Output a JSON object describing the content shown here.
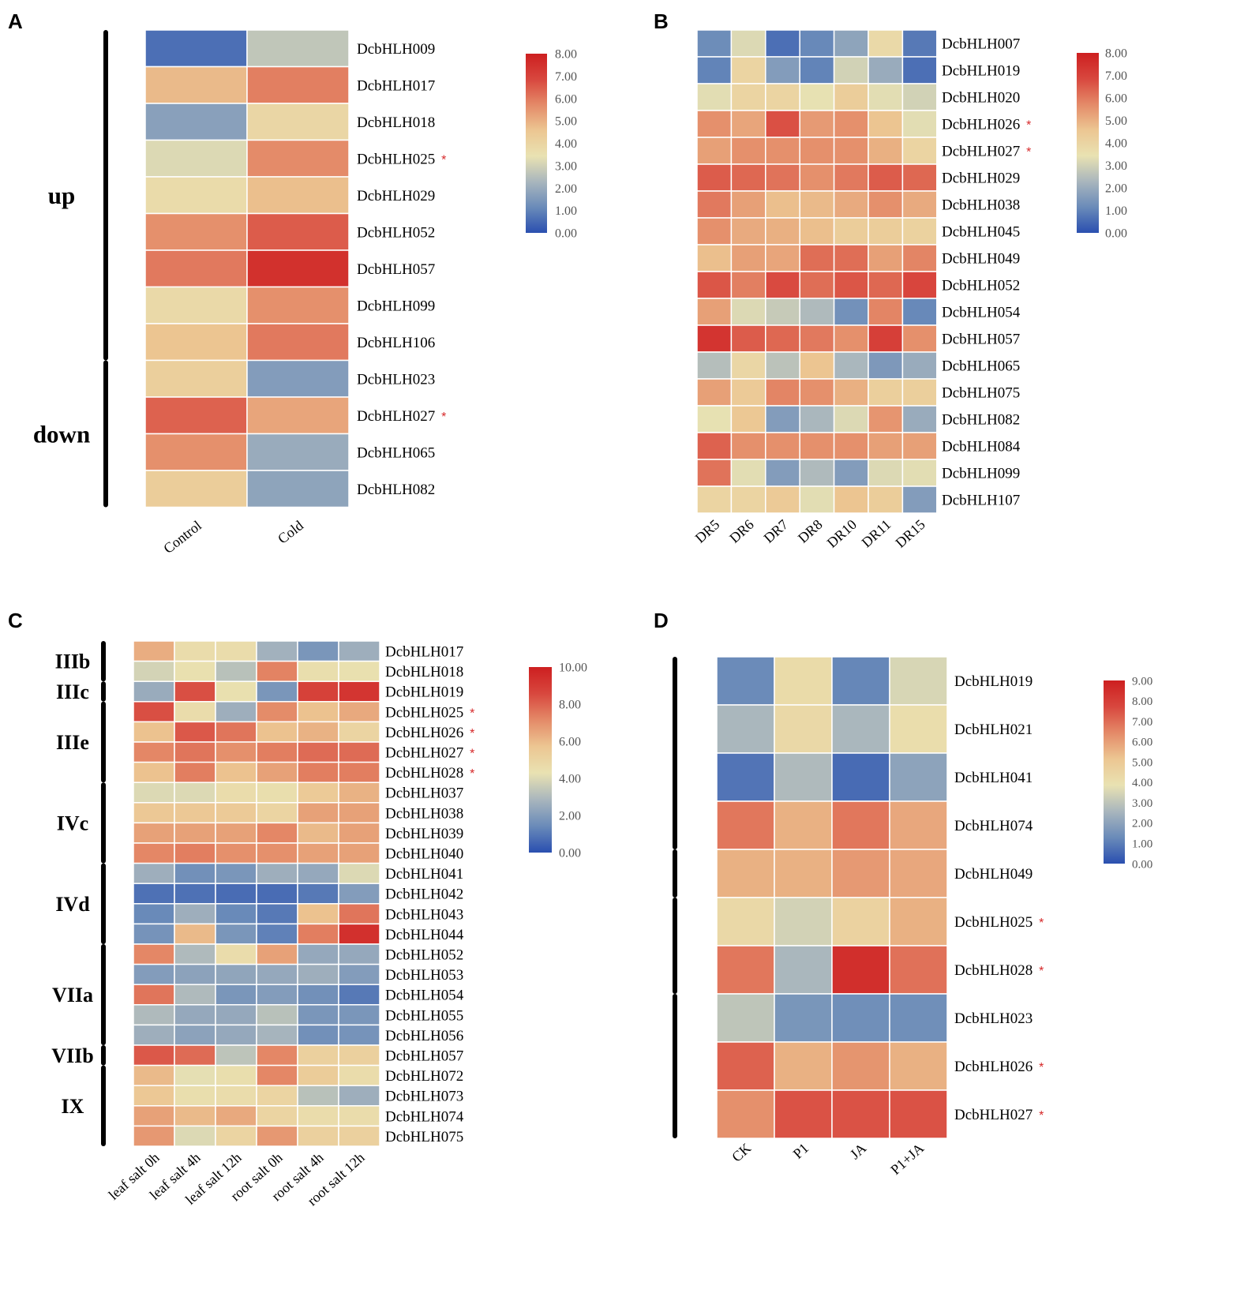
{
  "colors": {
    "scale": [
      "#2a4fb0",
      "#6a8bb9",
      "#a9b6bd",
      "#e9e2b2",
      "#ecc692",
      "#e48a68",
      "#d8473e",
      "#cd1f20"
    ],
    "asterisk": "#d62728",
    "cell_border": "#ffffff"
  },
  "chart_data": [
    {
      "panel": "A",
      "type": "heatmap",
      "columns": [
        "Control",
        "Cold"
      ],
      "rows": [
        {
          "gene": "DcbHLH009",
          "values": [
            0.6,
            2.7
          ],
          "mark": ""
        },
        {
          "gene": "DcbHLH017",
          "values": [
            4.8,
            5.9
          ],
          "mark": ""
        },
        {
          "gene": "DcbHLH018",
          "values": [
            1.7,
            3.9
          ],
          "mark": ""
        },
        {
          "gene": "DcbHLH025",
          "values": [
            3.2,
            5.7
          ],
          "mark": "*"
        },
        {
          "gene": "DcbHLH029",
          "values": [
            3.7,
            4.7
          ],
          "mark": ""
        },
        {
          "gene": "DcbHLH052",
          "values": [
            5.6,
            6.5
          ],
          "mark": ""
        },
        {
          "gene": "DcbHLH057",
          "values": [
            6.0,
            7.5
          ],
          "mark": ""
        },
        {
          "gene": "DcbHLH099",
          "values": [
            3.8,
            5.6
          ],
          "mark": ""
        },
        {
          "gene": "DcbHLH106",
          "values": [
            4.6,
            6.0
          ],
          "mark": ""
        },
        {
          "gene": "DcbHLH023",
          "values": [
            4.2,
            1.6
          ],
          "mark": ""
        },
        {
          "gene": "DcbHLH027",
          "values": [
            6.4,
            5.2
          ],
          "mark": "*"
        },
        {
          "gene": "DcbHLH065",
          "values": [
            5.6,
            2.0
          ],
          "mark": ""
        },
        {
          "gene": "DcbHLH082",
          "values": [
            4.3,
            1.8
          ],
          "mark": ""
        }
      ],
      "groups": [
        {
          "label": "up",
          "start": 0,
          "end": 8
        },
        {
          "label": "down",
          "start": 9,
          "end": 12
        }
      ],
      "scale": {
        "min": 0,
        "max": 8,
        "ticks": [
          "8.00",
          "7.00",
          "6.00",
          "5.00",
          "4.00",
          "3.00",
          "2.00",
          "1.00",
          "0.00"
        ]
      }
    },
    {
      "panel": "B",
      "type": "heatmap",
      "columns": [
        "DR5",
        "DR6",
        "DR7",
        "DR8",
        "DR10",
        "DR11",
        "DR15"
      ],
      "rows": [
        {
          "gene": "DcbHLH007",
          "values": [
            1.2,
            3.2,
            0.6,
            1.1,
            1.8,
            3.8,
            0.8
          ],
          "mark": ""
        },
        {
          "gene": "DcbHLH019",
          "values": [
            1.0,
            4.0,
            1.6,
            1.0,
            3.0,
            2.0,
            0.6
          ],
          "mark": ""
        },
        {
          "gene": "DcbHLH020",
          "values": [
            3.3,
            4.0,
            4.0,
            3.4,
            4.3,
            3.3,
            3.0
          ],
          "mark": ""
        },
        {
          "gene": "DcbHLH026",
          "values": [
            5.6,
            5.2,
            6.7,
            5.4,
            5.6,
            4.6,
            3.3
          ],
          "mark": "*"
        },
        {
          "gene": "DcbHLH027",
          "values": [
            5.3,
            5.6,
            5.6,
            5.6,
            5.6,
            5.0,
            4.0
          ],
          "mark": "*"
        },
        {
          "gene": "DcbHLH029",
          "values": [
            6.5,
            6.3,
            6.1,
            5.6,
            6.0,
            6.5,
            6.3
          ],
          "mark": ""
        },
        {
          "gene": "DcbHLH038",
          "values": [
            6.0,
            5.3,
            4.7,
            4.8,
            5.1,
            5.6,
            5.1
          ],
          "mark": ""
        },
        {
          "gene": "DcbHLH045",
          "values": [
            5.6,
            5.1,
            5.0,
            4.7,
            4.3,
            4.3,
            4.1
          ],
          "mark": ""
        },
        {
          "gene": "DcbHLH049",
          "values": [
            4.7,
            5.3,
            5.2,
            6.2,
            6.2,
            5.3,
            5.8
          ],
          "mark": ""
        },
        {
          "gene": "DcbHLH052",
          "values": [
            6.6,
            5.9,
            6.8,
            6.2,
            6.6,
            6.3,
            6.9
          ],
          "mark": ""
        },
        {
          "gene": "DcbHLH054",
          "values": [
            5.3,
            3.2,
            2.8,
            2.4,
            1.3,
            5.8,
            1.1
          ],
          "mark": ""
        },
        {
          "gene": "DcbHLH057",
          "values": [
            7.4,
            6.5,
            6.3,
            6.0,
            5.6,
            7.1,
            5.6
          ],
          "mark": ""
        },
        {
          "gene": "DcbHLH065",
          "values": [
            2.5,
            3.9,
            2.6,
            4.6,
            2.3,
            1.5,
            2.0
          ],
          "mark": ""
        },
        {
          "gene": "DcbHLH075",
          "values": [
            5.3,
            4.4,
            5.8,
            5.6,
            5.0,
            4.2,
            4.2
          ],
          "mark": ""
        },
        {
          "gene": "DcbHLH082",
          "values": [
            3.4,
            4.5,
            1.6,
            2.3,
            3.2,
            5.5,
            2.0
          ],
          "mark": ""
        },
        {
          "gene": "DcbHLH084",
          "values": [
            6.4,
            5.6,
            5.6,
            5.6,
            5.6,
            5.3,
            5.3
          ],
          "mark": ""
        },
        {
          "gene": "DcbHLH099",
          "values": [
            6.1,
            3.3,
            1.6,
            2.4,
            1.6,
            3.2,
            3.3
          ],
          "mark": ""
        },
        {
          "gene": "DcbHLH107",
          "values": [
            4.0,
            4.0,
            4.4,
            3.3,
            4.6,
            4.3,
            1.6
          ],
          "mark": ""
        }
      ],
      "scale": {
        "min": 0,
        "max": 8,
        "ticks": [
          "8.00",
          "7.00",
          "6.00",
          "5.00",
          "4.00",
          "3.00",
          "2.00",
          "1.00",
          "0.00"
        ]
      }
    },
    {
      "panel": "C",
      "type": "heatmap",
      "columns": [
        "leaf salt 0h",
        "leaf salt 4h",
        "leaf salt 12h",
        "root salt 0h",
        "root salt 4h",
        "root salt 12h"
      ],
      "rows": [
        {
          "gene": "DcbHLH017",
          "values": [
            6.3,
            4.6,
            4.6,
            2.7,
            1.8,
            2.6
          ],
          "mark": ""
        },
        {
          "gene": "DcbHLH018",
          "values": [
            3.8,
            4.4,
            3.2,
            7.3,
            4.5,
            4.4
          ],
          "mark": ""
        },
        {
          "gene": "DcbHLH019",
          "values": [
            2.5,
            8.4,
            4.4,
            1.8,
            8.8,
            9.2
          ],
          "mark": ""
        },
        {
          "gene": "DcbHLH025",
          "values": [
            8.4,
            4.6,
            2.6,
            7.1,
            5.8,
            6.4
          ],
          "mark": "*"
        },
        {
          "gene": "DcbHLH026",
          "values": [
            5.8,
            8.2,
            7.6,
            5.8,
            6.2,
            5.0
          ],
          "mark": "*"
        },
        {
          "gene": "DcbHLH027",
          "values": [
            7.2,
            7.6,
            7.0,
            7.4,
            7.8,
            7.8
          ],
          "mark": "*"
        },
        {
          "gene": "DcbHLH028",
          "values": [
            5.8,
            7.4,
            5.8,
            6.6,
            7.4,
            7.4
          ],
          "mark": "*"
        },
        {
          "gene": "DcbHLH037",
          "values": [
            4.0,
            4.0,
            4.6,
            4.5,
            5.5,
            6.2
          ],
          "mark": ""
        },
        {
          "gene": "DcbHLH038",
          "values": [
            5.6,
            5.6,
            5.5,
            5.0,
            6.6,
            6.6
          ],
          "mark": ""
        },
        {
          "gene": "DcbHLH039",
          "values": [
            6.6,
            6.6,
            6.6,
            7.2,
            6.0,
            6.6
          ],
          "mark": ""
        },
        {
          "gene": "DcbHLH040",
          "values": [
            7.2,
            7.4,
            7.0,
            7.0,
            6.6,
            6.6
          ],
          "mark": ""
        },
        {
          "gene": "DcbHLH041",
          "values": [
            2.6,
            1.6,
            1.8,
            2.6,
            2.4,
            4.0
          ],
          "mark": ""
        },
        {
          "gene": "DcbHLH042",
          "values": [
            0.8,
            0.8,
            0.7,
            0.7,
            1.0,
            2.0
          ],
          "mark": ""
        },
        {
          "gene": "DcbHLH043",
          "values": [
            1.4,
            2.6,
            1.4,
            1.0,
            5.8,
            7.6
          ],
          "mark": ""
        },
        {
          "gene": "DcbHLH044",
          "values": [
            1.7,
            6.0,
            1.8,
            1.2,
            7.4,
            9.4
          ],
          "mark": ""
        },
        {
          "gene": "DcbHLH052",
          "values": [
            7.2,
            3.0,
            4.6,
            6.6,
            2.4,
            2.4
          ],
          "mark": ""
        },
        {
          "gene": "DcbHLH053",
          "values": [
            2.0,
            2.2,
            2.3,
            2.4,
            2.6,
            2.0
          ],
          "mark": ""
        },
        {
          "gene": "DcbHLH054",
          "values": [
            7.6,
            3.0,
            1.8,
            2.0,
            1.6,
            1.0
          ],
          "mark": ""
        },
        {
          "gene": "DcbHLH055",
          "values": [
            3.0,
            2.4,
            2.4,
            3.2,
            1.8,
            1.8
          ],
          "mark": ""
        },
        {
          "gene": "DcbHLH056",
          "values": [
            2.6,
            2.2,
            2.4,
            2.8,
            1.6,
            1.7
          ],
          "mark": ""
        },
        {
          "gene": "DcbHLH057",
          "values": [
            8.2,
            7.8,
            3.3,
            7.2,
            5.2,
            5.2
          ],
          "mark": ""
        },
        {
          "gene": "DcbHLH072",
          "values": [
            6.0,
            4.2,
            4.5,
            7.2,
            5.4,
            4.6
          ],
          "mark": ""
        },
        {
          "gene": "DcbHLH073",
          "values": [
            5.6,
            4.5,
            4.6,
            5.0,
            3.2,
            2.6
          ],
          "mark": ""
        },
        {
          "gene": "DcbHLH074",
          "values": [
            6.6,
            6.0,
            6.4,
            5.0,
            4.6,
            4.6
          ],
          "mark": ""
        },
        {
          "gene": "DcbHLH075",
          "values": [
            6.8,
            4.0,
            5.0,
            6.8,
            5.2,
            5.2
          ],
          "mark": ""
        }
      ],
      "groups": [
        {
          "label": "IIIb",
          "start": 0,
          "end": 1
        },
        {
          "label": "IIIc",
          "start": 2,
          "end": 2
        },
        {
          "label": "IIIe",
          "start": 3,
          "end": 6
        },
        {
          "label": "IVc",
          "start": 7,
          "end": 10
        },
        {
          "label": "IVd",
          "start": 11,
          "end": 14
        },
        {
          "label": "VIIa",
          "start": 15,
          "end": 19
        },
        {
          "label": "VIIb",
          "start": 20,
          "end": 20
        },
        {
          "label": "IX",
          "start": 21,
          "end": 24
        }
      ],
      "scale": {
        "min": 0,
        "max": 10,
        "ticks": [
          "10.00",
          "8.00",
          "6.00",
          "4.00",
          "2.00",
          "0.00"
        ]
      }
    },
    {
      "panel": "D",
      "type": "heatmap",
      "columns": [
        "CK",
        "P1",
        "JA",
        "P1+JA"
      ],
      "rows": [
        {
          "gene": "DcbHLH019",
          "values": [
            1.3,
            4.2,
            1.2,
            3.5
          ],
          "mark": ""
        },
        {
          "gene": "DcbHLH021",
          "values": [
            2.6,
            4.3,
            2.6,
            4.1
          ],
          "mark": ""
        },
        {
          "gene": "DcbHLH041",
          "values": [
            0.8,
            2.7,
            0.6,
            2.0
          ],
          "mark": ""
        },
        {
          "gene": "DcbHLH074",
          "values": [
            6.8,
            5.6,
            6.8,
            5.8
          ],
          "mark": ""
        },
        {
          "gene": "DcbHLH049",
          "values": [
            5.6,
            5.6,
            6.1,
            5.8
          ],
          "mark": ""
        },
        {
          "gene": "DcbHLH025",
          "values": [
            4.3,
            3.4,
            4.6,
            5.6
          ],
          "mark": "*"
        },
        {
          "gene": "DcbHLH028",
          "values": [
            6.8,
            2.6,
            8.5,
            6.9
          ],
          "mark": "*"
        },
        {
          "gene": "DcbHLH023",
          "values": [
            3.0,
            1.6,
            1.4,
            1.4
          ],
          "mark": ""
        },
        {
          "gene": "DcbHLH026",
          "values": [
            7.2,
            5.6,
            6.2,
            5.6
          ],
          "mark": "*"
        },
        {
          "gene": "DcbHLH027",
          "values": [
            6.3,
            7.5,
            7.5,
            7.5
          ],
          "mark": "*"
        }
      ],
      "groups": [
        {
          "label": "",
          "start": 0,
          "end": 3
        },
        {
          "label": "",
          "start": 4,
          "end": 4
        },
        {
          "label": "",
          "start": 5,
          "end": 6
        },
        {
          "label": "",
          "start": 7,
          "end": 9
        }
      ],
      "scale": {
        "min": 0,
        "max": 9,
        "ticks": [
          "9.00",
          "8.00",
          "7.00",
          "6.00",
          "5.00",
          "4.00",
          "3.00",
          "2.00",
          "1.00",
          "0.00"
        ]
      }
    }
  ]
}
